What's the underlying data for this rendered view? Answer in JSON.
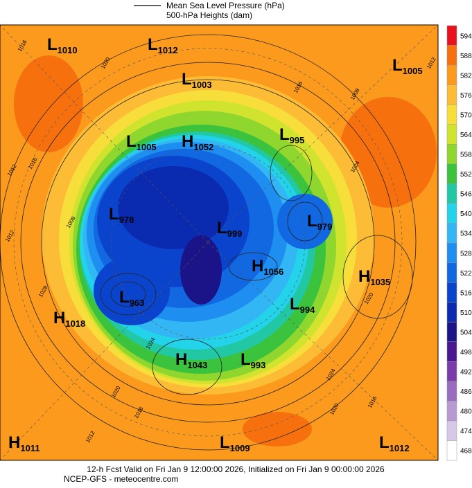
{
  "legend": {
    "pressure": "Mean Sea Level Pressure (hPa)",
    "heights": "500-hPa Heights (dam)"
  },
  "centers": [
    {
      "kind": "L",
      "value": "1010"
    },
    {
      "kind": "L",
      "value": "1012"
    },
    {
      "kind": "L",
      "value": "1005"
    },
    {
      "kind": "L",
      "value": "1003"
    },
    {
      "kind": "L",
      "value": "995"
    },
    {
      "kind": "L",
      "value": "1005"
    },
    {
      "kind": "H",
      "value": "1052"
    },
    {
      "kind": "L",
      "value": "978"
    },
    {
      "kind": "L",
      "value": "999"
    },
    {
      "kind": "L",
      "value": "979"
    },
    {
      "kind": "H",
      "value": "1056"
    },
    {
      "kind": "H",
      "value": "1035"
    },
    {
      "kind": "L",
      "value": "963"
    },
    {
      "kind": "L",
      "value": "994"
    },
    {
      "kind": "H",
      "value": "1018"
    },
    {
      "kind": "H",
      "value": "1043"
    },
    {
      "kind": "L",
      "value": "993"
    },
    {
      "kind": "H",
      "value": "1011"
    },
    {
      "kind": "L",
      "value": "1009"
    },
    {
      "kind": "L",
      "value": "1012"
    }
  ],
  "contour_labels": [
    "1016",
    "1020",
    "1012",
    "1016",
    "1008",
    "1016",
    "1012",
    "1024",
    "1020",
    "1028",
    "1024",
    "1020",
    "1016",
    "1012",
    "1024",
    "1020",
    "1016",
    "1012",
    "1008"
  ],
  "colorbar": {
    "ticks": [
      "594",
      "588",
      "582",
      "576",
      "570",
      "564",
      "558",
      "552",
      "546",
      "540",
      "534",
      "528",
      "522",
      "516",
      "510",
      "504",
      "498",
      "492",
      "486",
      "480",
      "474",
      "468"
    ],
    "colors": [
      "#e8121e",
      "#f7700e",
      "#fb9a1d",
      "#fdbc35",
      "#f8de3a",
      "#cfe32f",
      "#8fd62f",
      "#3cc33d",
      "#22c7a4",
      "#23d3e9",
      "#33b6f4",
      "#1e8ef0",
      "#1268e0",
      "#0b44cc",
      "#0a2ab0",
      "#1a1488",
      "#4a1790",
      "#7a3ca8",
      "#9a6cc0",
      "#b89ad2",
      "#d6c8e6",
      "#ffffff"
    ]
  },
  "footer": {
    "line1": "12-h Fcst Valid on Fri Jan  9 12:00:00 2026, Initialized on Fri Jan  9 00:00:00 2026",
    "line2": "NCEP-GFS  - meteocentre.com"
  }
}
